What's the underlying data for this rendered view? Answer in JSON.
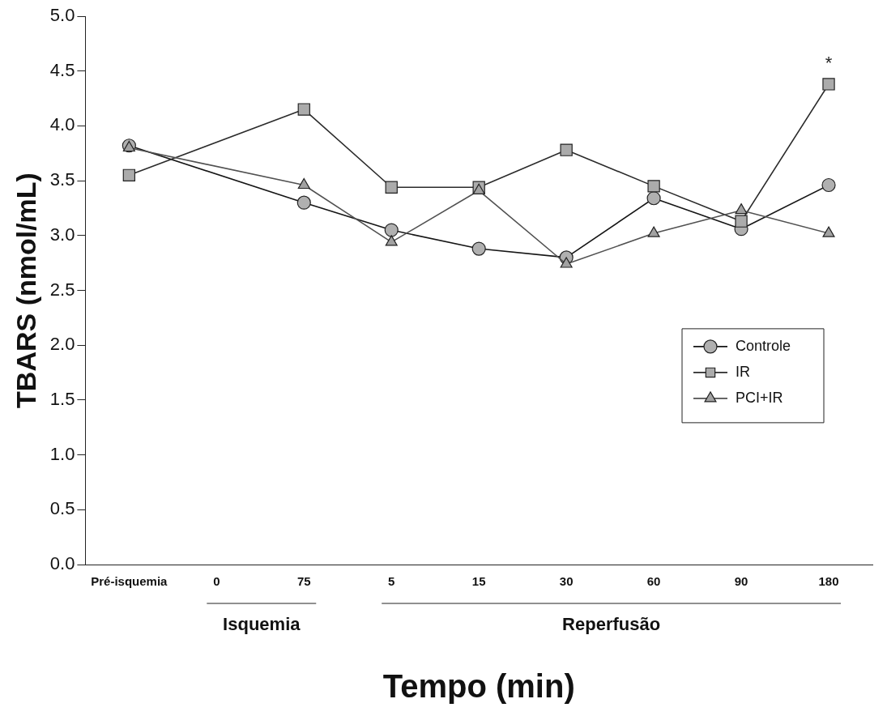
{
  "chart_data": {
    "type": "line",
    "xlabel": "Tempo (min)",
    "ylabel": "TBARS (nmol/mL)",
    "categories": [
      "Pré-isquemia",
      "0",
      "75",
      "5",
      "15",
      "30",
      "60",
      "90",
      "180"
    ],
    "ylim": [
      0,
      5
    ],
    "yticks": [
      {
        "value": 0,
        "label": "0.0"
      },
      {
        "value": 0.5,
        "label": "0.5"
      },
      {
        "value": 1,
        "label": "1.0"
      },
      {
        "value": 1.5,
        "label": "1.5"
      },
      {
        "value": 2,
        "label": "2.0"
      },
      {
        "value": 2.5,
        "label": "2.5"
      },
      {
        "value": 3,
        "label": "3.0"
      },
      {
        "value": 3.5,
        "label": "3.5"
      },
      {
        "value": 4,
        "label": "4.0"
      },
      {
        "value": 4.5,
        "label": "4.5"
      },
      {
        "value": 5,
        "label": "5.0"
      }
    ],
    "series": [
      {
        "name": "Controle",
        "color": "#b0b0b0",
        "marker": "circle",
        "values": [
          3.82,
          null,
          3.3,
          3.05,
          2.88,
          2.8,
          3.34,
          3.06,
          3.46
        ]
      },
      {
        "name": "IR",
        "color": "#ababab",
        "marker": "square",
        "values": [
          3.55,
          null,
          4.15,
          3.44,
          3.44,
          3.78,
          3.45,
          3.13,
          4.38
        ]
      },
      {
        "name": "PCI+IR",
        "color": "#a2a2a2",
        "marker": "triangle",
        "values": [
          3.8,
          null,
          3.46,
          2.94,
          3.41,
          2.74,
          3.02,
          3.23,
          3.02
        ]
      }
    ],
    "annotations": [
      "Isquemia",
      "Reperfusão",
      {
        "text": "*",
        "x": "180",
        "y": 4.38
      }
    ],
    "legend": "right",
    "grid": false
  }
}
